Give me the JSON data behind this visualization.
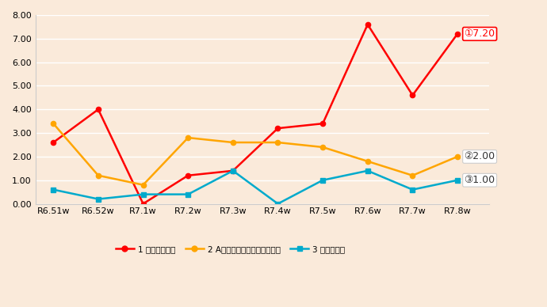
{
  "x_labels": [
    "R6.51w",
    "R6.52w",
    "R7.1w",
    "R7.2w",
    "R7.3w",
    "R7.4w",
    "R7.5w",
    "R7.6w",
    "R7.7w",
    "R7.8w"
  ],
  "series1_name": "1 感染性胃腸炎",
  "series1_color": "#ff0000",
  "series1_values": [
    2.6,
    4.0,
    0.0,
    1.2,
    1.4,
    3.2,
    3.4,
    7.6,
    4.6,
    7.2
  ],
  "series2_name": "2 A群溶血性レンサ球菌咽頭炎",
  "series2_color": "#ffa500",
  "series2_values": [
    3.4,
    1.2,
    0.8,
    2.8,
    2.6,
    2.6,
    2.4,
    1.8,
    1.2,
    2.0
  ],
  "series3_name": "3 伝染性紅斑",
  "series3_color": "#00aacc",
  "series3_values": [
    0.6,
    0.2,
    0.4,
    0.4,
    1.4,
    0.0,
    1.0,
    1.4,
    0.6,
    1.0
  ],
  "ylim": [
    0.0,
    8.0
  ],
  "yticks": [
    0.0,
    1.0,
    2.0,
    3.0,
    4.0,
    5.0,
    6.0,
    7.0,
    8.0
  ],
  "background_color": "#faeada",
  "circle1": "①",
  "circle2": "②",
  "circle3": "③",
  "ann1_label": "7.20",
  "ann2_label": "2.00",
  "ann3_label": "1.00"
}
